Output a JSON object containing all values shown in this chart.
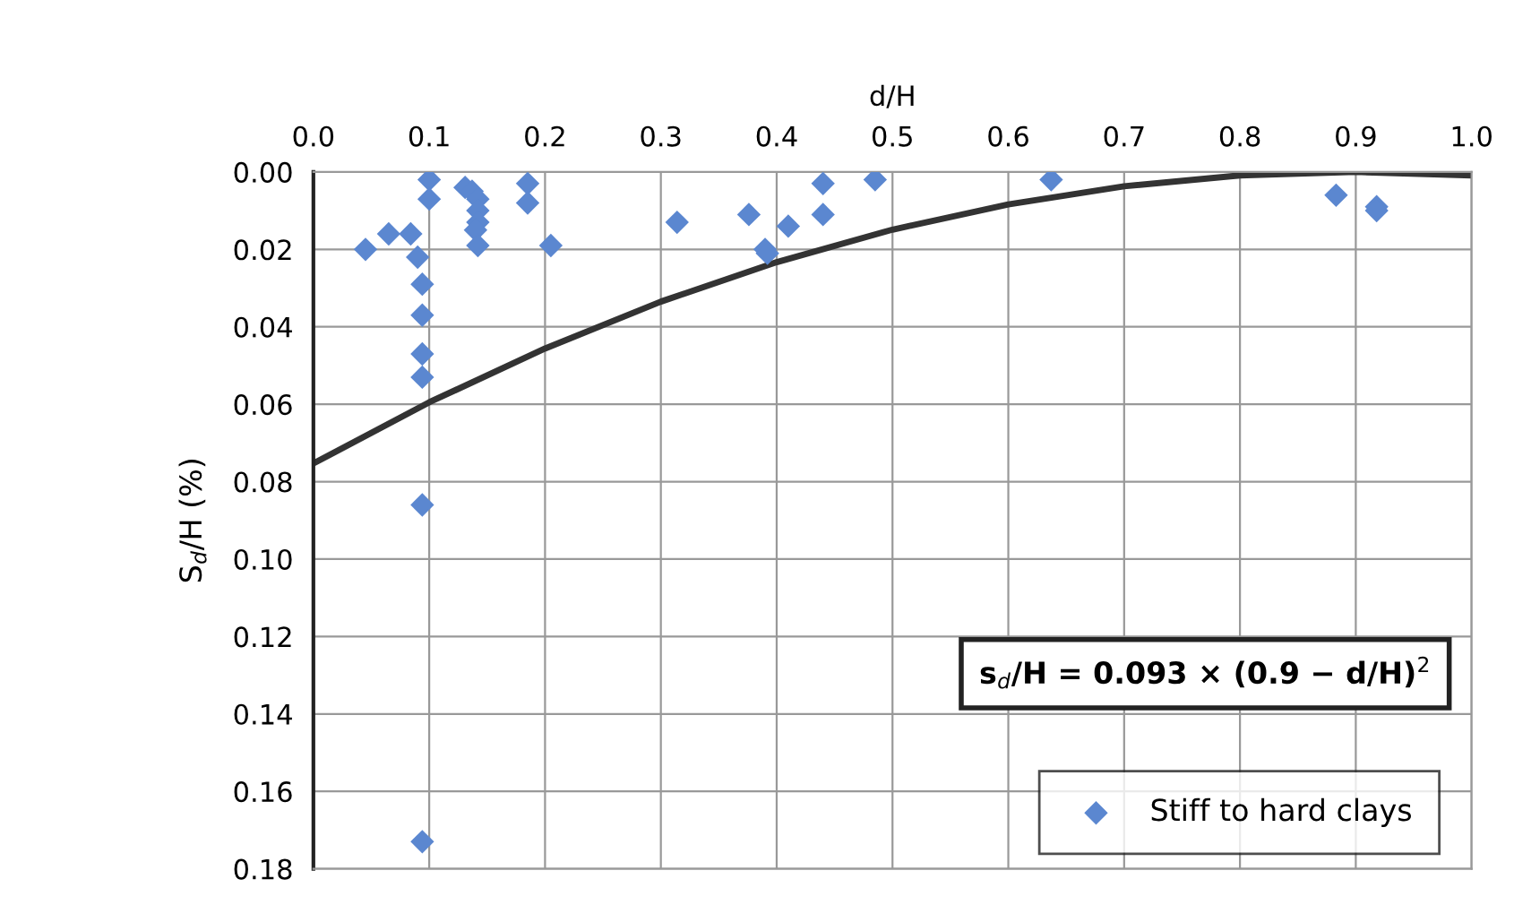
{
  "chart_data": {
    "type": "scatter",
    "xlabel": "d/H",
    "ylabel": "S$_{d}$/H (%)",
    "xlim": [
      0,
      1
    ],
    "ylim": [
      0.18,
      0
    ],
    "xticks": [
      {
        "value": 0,
        "label": "0.0"
      },
      {
        "value": 0.1,
        "label": "0.1"
      },
      {
        "value": 0.2,
        "label": "0.2"
      },
      {
        "value": 0.3,
        "label": "0.3"
      },
      {
        "value": 0.4,
        "label": "0.4"
      },
      {
        "value": 0.5,
        "label": "0.5"
      },
      {
        "value": 0.6,
        "label": "0.6"
      },
      {
        "value": 0.7,
        "label": "0.7"
      },
      {
        "value": 0.8,
        "label": "0.8"
      },
      {
        "value": 0.9,
        "label": "0.9"
      },
      {
        "value": 1,
        "label": "1.0"
      }
    ],
    "yticks": [
      {
        "value": 0,
        "label": "0.00"
      },
      {
        "value": 0.02,
        "label": "0.02"
      },
      {
        "value": 0.04,
        "label": "0.04"
      },
      {
        "value": 0.06,
        "label": "0.06"
      },
      {
        "value": 0.08,
        "label": "0.08"
      },
      {
        "value": 0.1,
        "label": "0.10"
      },
      {
        "value": 0.12,
        "label": "0.12"
      },
      {
        "value": 0.14,
        "label": "0.14"
      },
      {
        "value": 0.16,
        "label": "0.16"
      },
      {
        "value": 0.18,
        "label": "0.18"
      }
    ],
    "grid": true,
    "legend": "bottom right",
    "marker": "diamond",
    "series": [
      {
        "name": "Stiff to hard clays",
        "color": "#5b87d0",
        "x": [
          0.045,
          0.065,
          0.084,
          0.09,
          0.094,
          0.094,
          0.094,
          0.094,
          0.1,
          0.1,
          0.094,
          0.094,
          0.131,
          0.137,
          0.142,
          0.142,
          0.142,
          0.14,
          0.142,
          0.185,
          0.185,
          0.205,
          0.314,
          0.376,
          0.39,
          0.392,
          0.41,
          0.44,
          0.44,
          0.485,
          0.637,
          0.883,
          0.918,
          0.918
        ],
        "values": [
          0.02,
          0.016,
          0.016,
          0.022,
          0.029,
          0.037,
          0.047,
          0.053,
          0.002,
          0.007,
          0.086,
          0.173,
          0.004,
          0.005,
          0.007,
          0.01,
          0.013,
          0.015,
          0.019,
          0.003,
          0.008,
          0.019,
          0.013,
          0.011,
          0.02,
          0.021,
          0.014,
          0.003,
          0.011,
          0.002,
          0.002,
          0.006,
          0.009,
          0.01
        ]
      },
      {
        "type": "line",
        "color": "#333333",
        "marker": "none",
        "x": [
          0,
          0.1,
          0.2,
          0.3,
          0.4,
          0.5,
          0.6,
          0.7,
          0.8,
          0.9,
          1.0
        ],
        "values": [
          0.0753,
          0.0595,
          0.0456,
          0.0335,
          0.0233,
          0.0149,
          0.0084,
          0.0037,
          0.0009,
          0,
          0.0009
        ]
      }
    ],
    "annotations": [
      "s$_{d}$/H = 0.093 × (0.9 − d/H)$^{2}$"
    ]
  }
}
